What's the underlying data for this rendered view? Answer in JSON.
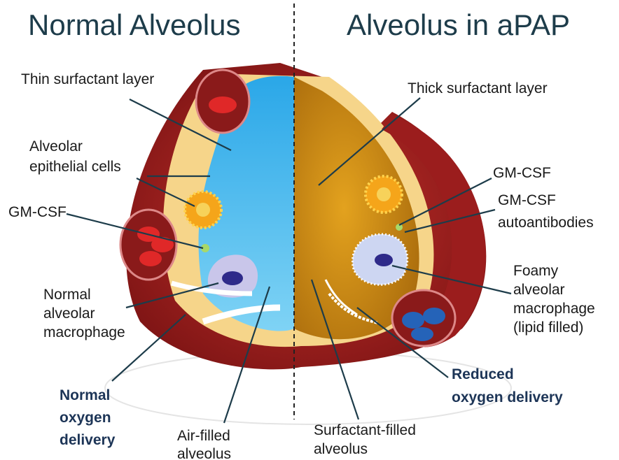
{
  "title_left": "Normal Alveolus",
  "title_right": "Alveolus in aPAP",
  "labels": [
    {
      "lines": [
        "Thin surfactant layer"
      ]
    },
    {
      "lines": [
        "Alveolar",
        "epithelial cells"
      ]
    },
    {
      "lines": [
        "GM-CSF"
      ]
    },
    {
      "lines": [
        "Normal",
        "alveolar",
        "macrophage"
      ]
    },
    {
      "lines": [
        "Normal",
        "oxygen",
        "delivery"
      ]
    },
    {
      "lines": [
        "Air-filled",
        "alveolus"
      ]
    },
    {
      "lines": [
        "Surfactant-filled",
        "alveolus"
      ]
    },
    {
      "lines": [
        "Reduced",
        "oxygen delivery"
      ]
    },
    {
      "lines": [
        "Thick surfactant layer"
      ]
    },
    {
      "lines": [
        "GM-CSF"
      ]
    },
    {
      "lines": [
        "GM-CSF",
        "autoantibodies"
      ]
    },
    {
      "lines": [
        "Foamy",
        "alveolar",
        "macrophage",
        "(lipid filled)"
      ]
    }
  ]
}
